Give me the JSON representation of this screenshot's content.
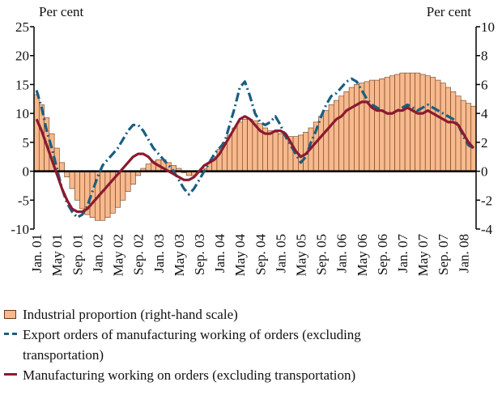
{
  "chart_data": {
    "type": "bar",
    "ylabel": "Per cent",
    "y2label": "Per cent",
    "ylim": [
      -10,
      25
    ],
    "yticks": [
      -10,
      -5,
      0,
      5,
      10,
      15,
      20,
      25
    ],
    "y2lim": [
      -4,
      10
    ],
    "y2ticks": [
      -4,
      -2,
      0,
      2,
      4,
      6,
      8,
      10
    ],
    "categories": [
      "Jan. 01",
      null,
      null,
      null,
      "May 01",
      null,
      null,
      null,
      "Sep. 01",
      null,
      null,
      null,
      "Jan. 02",
      null,
      null,
      null,
      "May 02",
      null,
      null,
      null,
      "Sep. 02",
      null,
      null,
      null,
      "Jan. 03",
      null,
      null,
      null,
      "May 03",
      null,
      null,
      null,
      "Sep. 03",
      null,
      null,
      null,
      "Jan. 04",
      null,
      null,
      null,
      "May 04",
      null,
      null,
      null,
      "Sep. 04",
      null,
      null,
      null,
      "Jan. 05",
      null,
      null,
      null,
      "May 05",
      null,
      null,
      null,
      "Sep. 05",
      null,
      null,
      null,
      "Jan. 06",
      null,
      null,
      null,
      "May 06",
      null,
      null,
      null,
      "Sep. 06",
      null,
      null,
      null,
      "Jan. 07",
      null,
      null,
      null,
      "May 07",
      null,
      null,
      null,
      "Sep. 07",
      null,
      null,
      null,
      "Jan. 08",
      null,
      null
    ],
    "series": [
      {
        "name": "Industrial proportion (right-hand scale)",
        "type": "bar",
        "axis": "y2",
        "color": "#f7b98d",
        "edge": "#6b3a1a",
        "values": [
          5.3,
          4.6,
          3.7,
          2.6,
          1.6,
          0.6,
          -0.4,
          -1.2,
          -2.0,
          -2.6,
          -3.0,
          -3.2,
          -3.4,
          -3.4,
          -3.2,
          -2.9,
          -2.5,
          -2.0,
          -1.4,
          -0.9,
          -0.3,
          0.2,
          0.5,
          0.7,
          0.8,
          0.8,
          0.6,
          0.4,
          0.2,
          -0.1,
          -0.3,
          -0.3,
          -0.1,
          0.2,
          0.6,
          1.0,
          1.5,
          2.0,
          2.5,
          3.0,
          3.4,
          3.6,
          3.6,
          3.5,
          3.3,
          3.0,
          2.8,
          2.7,
          2.6,
          2.5,
          2.4,
          2.4,
          2.5,
          2.7,
          3.0,
          3.4,
          3.8,
          4.2,
          4.6,
          4.9,
          5.2,
          5.5,
          5.8,
          6.0,
          6.1,
          6.2,
          6.3,
          6.3,
          6.4,
          6.5,
          6.6,
          6.7,
          6.8,
          6.8,
          6.8,
          6.8,
          6.7,
          6.6,
          6.5,
          6.3,
          6.1,
          5.8,
          5.5,
          5.2,
          4.9,
          4.7,
          4.5
        ]
      },
      {
        "name": "Export orders of manufacturing working of orders (excluding transportation)",
        "type": "line",
        "axis": "y",
        "color": "#1a5e80",
        "style": "dash-dot",
        "values": [
          14,
          11,
          7,
          4,
          0.5,
          -3,
          -5.5,
          -7,
          -8,
          -7.5,
          -6,
          -3.5,
          -1,
          1,
          2,
          3,
          4,
          5.5,
          7,
          8,
          8,
          7,
          5.5,
          4,
          3,
          2,
          1,
          0,
          -1.5,
          -3,
          -4,
          -3,
          -1.5,
          0,
          1.5,
          3,
          4,
          5,
          8,
          11,
          14.5,
          15.5,
          13,
          10,
          8.5,
          8,
          8.5,
          9.5,
          8,
          6,
          4.5,
          3,
          1.5,
          2.5,
          5,
          7,
          9.5,
          11.5,
          13,
          13.5,
          14.5,
          15.5,
          16,
          15.5,
          14,
          12.5,
          11.5,
          11,
          10.5,
          10,
          10,
          10.5,
          11,
          11.5,
          11,
          10.5,
          11,
          11.5,
          11,
          10.5,
          10,
          9.5,
          9,
          8,
          6,
          4.5,
          4
        ]
      },
      {
        "name": "Manufacturing working on orders (excluding transportation)",
        "type": "line",
        "axis": "y",
        "color": "#8b1a2f",
        "style": "solid",
        "values": [
          9,
          7,
          4.5,
          2,
          -0.5,
          -3,
          -5,
          -6.5,
          -7,
          -7,
          -6.5,
          -5.5,
          -4.5,
          -3.5,
          -2.5,
          -1.5,
          -0.5,
          0.5,
          1.5,
          2.5,
          3,
          3,
          2.5,
          1.5,
          1,
          0.5,
          0,
          -0.5,
          -1,
          -1.5,
          -1.5,
          -1,
          0,
          1,
          1.5,
          2,
          3,
          4.5,
          6,
          7.5,
          9,
          9.5,
          9,
          8,
          7,
          6.5,
          6.5,
          7,
          7,
          6.5,
          5,
          3.5,
          2.5,
          3,
          4,
          5,
          6,
          7,
          8,
          9,
          9.5,
          10.5,
          11,
          11.5,
          12,
          12,
          11,
          10.5,
          10.5,
          10,
          10,
          10.5,
          10.5,
          11,
          10.5,
          10,
          10,
          10.5,
          10,
          9.5,
          9,
          8.5,
          8.5,
          8,
          6.5,
          5,
          4
        ]
      }
    ]
  }
}
